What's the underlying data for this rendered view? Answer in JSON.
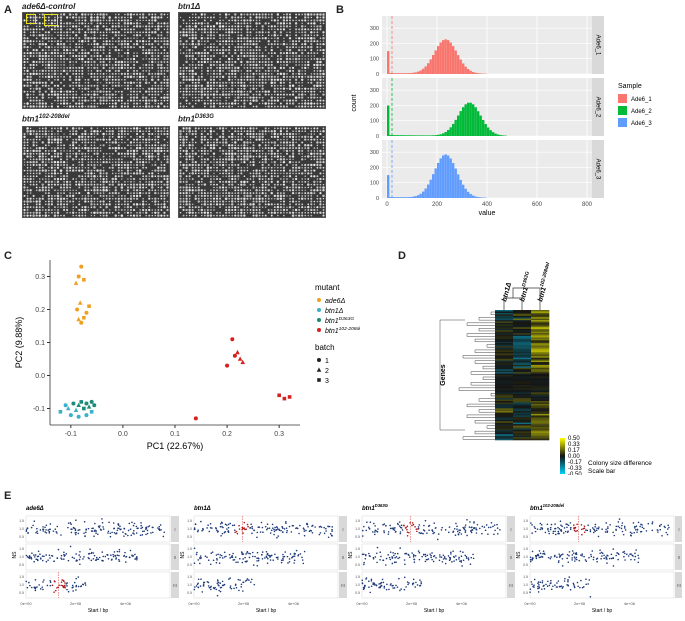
{
  "panel_letters": {
    "a": "A",
    "b": "B",
    "c": "C",
    "d": "D",
    "e": "E"
  },
  "panel_a": {
    "plates": [
      {
        "title": "ade6Δ-control"
      },
      {
        "title": "btn1Δ"
      },
      {
        "title_base": "btn1",
        "title_sup": "102-208del"
      },
      {
        "title_base": "btn1",
        "title_sup": "D363G"
      }
    ]
  },
  "chart_data": [
    {
      "panel": "B",
      "type": "bar",
      "xlabel": "value",
      "ylabel": "count",
      "x_ticks": [
        0,
        200,
        400,
        600,
        800
      ],
      "xlim": [
        -20,
        820
      ],
      "y_ticks": [
        0,
        100,
        200,
        300
      ],
      "legend_title": "Sample",
      "series": [
        {
          "name": "Ade6_1",
          "color": "#f8766d",
          "peak_value": 230,
          "peak_count": 280,
          "zero_bin_count": 150
        },
        {
          "name": "Ade6_2",
          "color": "#00ba38",
          "peak_value": 325,
          "peak_count": 270,
          "zero_bin_count": 200
        },
        {
          "name": "Ade6_3",
          "color": "#619cff",
          "peak_value": 230,
          "peak_count": 350,
          "zero_bin_count": 150
        }
      ],
      "legend_placement": "right"
    },
    {
      "panel": "C",
      "type": "scatter",
      "xlabel": "PC1 (22.67%)",
      "ylabel": "PC2 (9.88%)",
      "x_ticks": [
        "-0.1",
        "0.0",
        "0.1",
        "0.2",
        "0.3"
      ],
      "x_tick_values": [
        -0.1,
        0.0,
        0.1,
        0.2,
        0.3
      ],
      "y_ticks": [
        "-0.1",
        "0.0",
        "0.1",
        "0.2",
        "0.3"
      ],
      "y_tick_values": [
        -0.1,
        0.0,
        0.1,
        0.2,
        0.3
      ],
      "xlim": [
        -0.14,
        0.34
      ],
      "ylim": [
        -0.15,
        0.35
      ],
      "legend_mutant_title": "mutant",
      "legend_batch_title": "batch",
      "mutants": [
        {
          "label": "ade6Δ",
          "color": "#f0a020"
        },
        {
          "label": "btn1Δ",
          "color": "#3bb0c8"
        },
        {
          "base": "btn1",
          "sup": "D363G",
          "color": "#1a8a7a"
        },
        {
          "base": "btn1",
          "sup": "102-208del",
          "color": "#d62020"
        }
      ],
      "batches": [
        "1",
        "2",
        "3"
      ],
      "points": [
        {
          "x": -0.085,
          "y": 0.3,
          "m": 0,
          "b": 1
        },
        {
          "x": -0.08,
          "y": 0.33,
          "m": 0,
          "b": 1
        },
        {
          "x": -0.09,
          "y": 0.28,
          "m": 0,
          "b": 2
        },
        {
          "x": -0.075,
          "y": 0.29,
          "m": 0,
          "b": 3
        },
        {
          "x": -0.088,
          "y": 0.2,
          "m": 0,
          "b": 1
        },
        {
          "x": -0.082,
          "y": 0.22,
          "m": 0,
          "b": 2
        },
        {
          "x": -0.085,
          "y": 0.17,
          "m": 0,
          "b": 2
        },
        {
          "x": -0.075,
          "y": 0.175,
          "m": 0,
          "b": 3
        },
        {
          "x": -0.07,
          "y": 0.19,
          "m": 0,
          "b": 1
        },
        {
          "x": -0.065,
          "y": 0.21,
          "m": 0,
          "b": 3
        },
        {
          "x": -0.08,
          "y": 0.16,
          "m": 0,
          "b": 1
        },
        {
          "x": -0.11,
          "y": -0.09,
          "m": 1,
          "b": 1
        },
        {
          "x": -0.105,
          "y": -0.1,
          "m": 1,
          "b": 2
        },
        {
          "x": -0.12,
          "y": -0.11,
          "m": 1,
          "b": 3
        },
        {
          "x": -0.1,
          "y": -0.12,
          "m": 1,
          "b": 1
        },
        {
          "x": -0.09,
          "y": -0.105,
          "m": 1,
          "b": 2
        },
        {
          "x": -0.07,
          "y": -0.12,
          "m": 1,
          "b": 1
        },
        {
          "x": -0.06,
          "y": -0.11,
          "m": 1,
          "b": 3
        },
        {
          "x": -0.085,
          "y": -0.125,
          "m": 1,
          "b": 1
        },
        {
          "x": -0.095,
          "y": -0.085,
          "m": 2,
          "b": 1
        },
        {
          "x": -0.085,
          "y": -0.09,
          "m": 2,
          "b": 2
        },
        {
          "x": -0.08,
          "y": -0.08,
          "m": 2,
          "b": 3
        },
        {
          "x": -0.07,
          "y": -0.085,
          "m": 2,
          "b": 1
        },
        {
          "x": -0.065,
          "y": -0.095,
          "m": 2,
          "b": 2
        },
        {
          "x": -0.06,
          "y": -0.08,
          "m": 2,
          "b": 1
        },
        {
          "x": -0.075,
          "y": -0.1,
          "m": 2,
          "b": 3
        },
        {
          "x": -0.055,
          "y": -0.09,
          "m": 2,
          "b": 1
        },
        {
          "x": 0.21,
          "y": 0.11,
          "m": 3,
          "b": 1
        },
        {
          "x": 0.22,
          "y": 0.07,
          "m": 3,
          "b": 2
        },
        {
          "x": 0.215,
          "y": 0.06,
          "m": 3,
          "b": 1
        },
        {
          "x": 0.23,
          "y": 0.04,
          "m": 3,
          "b": 2
        },
        {
          "x": 0.2,
          "y": 0.03,
          "m": 3,
          "b": 1
        },
        {
          "x": 0.225,
          "y": 0.05,
          "m": 3,
          "b": 2
        },
        {
          "x": 0.3,
          "y": -0.06,
          "m": 3,
          "b": 3
        },
        {
          "x": 0.31,
          "y": -0.07,
          "m": 3,
          "b": 3
        },
        {
          "x": 0.32,
          "y": -0.065,
          "m": 3,
          "b": 3
        },
        {
          "x": 0.14,
          "y": -0.13,
          "m": 3,
          "b": 1
        }
      ]
    },
    {
      "panel": "D",
      "type": "heatmap",
      "columns": [
        {
          "label": "btn1Δ"
        },
        {
          "base": "btn1",
          "sup": "D363G"
        },
        {
          "base": "btn1",
          "sup": "102-208del"
        }
      ],
      "row_label": "Genes",
      "colorbar_ticks": [
        "0.50",
        "0.33",
        "0.17",
        "0.00",
        "-0.17",
        "-0.33",
        "-0.50"
      ],
      "colorbar_values": [
        0.5,
        0.33,
        0.17,
        0.0,
        -0.17,
        -0.33,
        -0.5
      ],
      "colorbar_label_1": "Colony size difference",
      "colorbar_label_2": "Scale bar"
    },
    {
      "panel": "E",
      "type": "scatter",
      "xlabel": "Start / bp",
      "ylabel": "NS",
      "x_ticks": [
        "0e+00",
        "2e+06",
        "4e+06"
      ],
      "x_tick_values": [
        0,
        2000000,
        4000000
      ],
      "y_ticks": [
        "1.5",
        "1.0",
        "0.5"
      ],
      "y_tick_values": [
        1.5,
        1.0,
        0.5
      ],
      "chromosome_strips": [
        "I",
        "II",
        "III"
      ],
      "facets": [
        {
          "title": "ade6Δ",
          "highlight_chr": 3,
          "highlight_bp": 1316000
        },
        {
          "title": "btn1Δ",
          "highlight_chr": 1,
          "highlight_bp": 1950000
        },
        {
          "title_base": "btn1",
          "title_sup": "D363G",
          "highlight_chr": 1,
          "highlight_bp": 1950000
        },
        {
          "title_base": "btn1",
          "title_sup": "102-208del",
          "highlight_chr": 1,
          "highlight_bp": 1950000
        }
      ]
    }
  ]
}
